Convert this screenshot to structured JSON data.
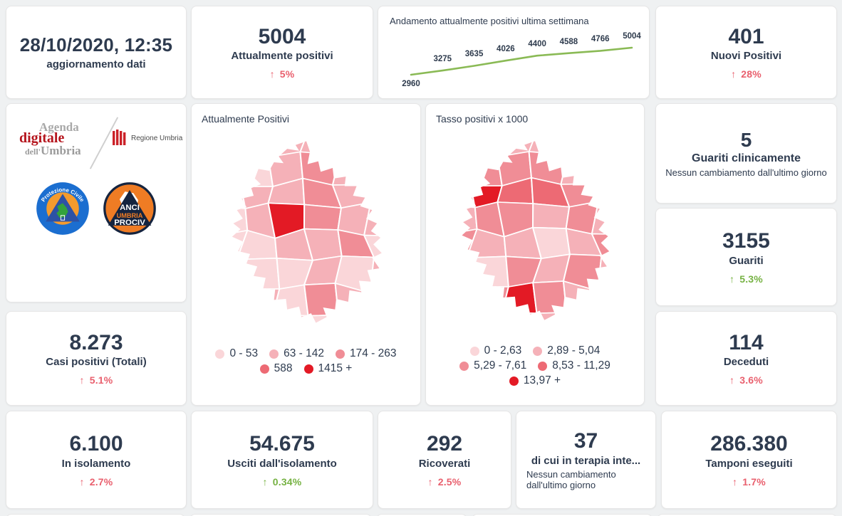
{
  "header": {
    "date": "28/10/2020, 12:35",
    "subtitle": "aggiornamento dati"
  },
  "icons": {
    "up_arrow": "↑"
  },
  "palette": [
    "#fad6d9",
    "#f5b1b8",
    "#f08d96",
    "#ed6a74",
    "#e31a25"
  ],
  "colors": {
    "text": "#2e3b4f",
    "red": "#e9606e",
    "green": "#76b243",
    "trend_line": "#8aba55"
  },
  "chart_data": {
    "type": "line",
    "title": "Andamento attualmente positivi ultima settimana",
    "values": [
      2960,
      3275,
      3635,
      4026,
      4400,
      4588,
      4766,
      5004
    ],
    "data_labels": [
      "2960",
      "3275",
      "3635",
      "4026",
      "4400",
      "4588",
      "4766",
      "5004"
    ],
    "line_color": "#8aba55",
    "ylim": [
      2800,
      5300
    ],
    "grid": false,
    "legend": "none"
  },
  "stats": {
    "attualmente": {
      "value": "5004",
      "label": "Attualmente positivi",
      "delta": "5%",
      "tone": "red"
    },
    "nuovi": {
      "value": "401",
      "label": "Nuovi Positivi",
      "delta": "28%",
      "tone": "red"
    },
    "guariti_clinicamente": {
      "value": "5",
      "label": "Guariti clinicamente",
      "note": "Nessun cambiamento dall'ultimo giorno"
    },
    "guariti": {
      "value": "3155",
      "label": "Guariti",
      "delta": "5.3%",
      "tone": "green"
    },
    "casi_totali": {
      "value": "8.273",
      "label": "Casi positivi (Totali)",
      "delta": "5.1%",
      "tone": "red"
    },
    "deceduti": {
      "value": "114",
      "label": "Deceduti",
      "delta": "3.6%",
      "tone": "red"
    },
    "isolamento": {
      "value": "6.100",
      "label": "In isolamento",
      "delta": "2.7%",
      "tone": "red"
    },
    "usciti": {
      "value": "54.675",
      "label": "Usciti dall'isolamento",
      "delta": "0.34%",
      "tone": "green"
    },
    "ricoverati": {
      "value": "292",
      "label": "Ricoverati",
      "delta": "2.5%",
      "tone": "red"
    },
    "terapia": {
      "value": "37",
      "label": "di cui in terapia inte...",
      "note_line1": "Nessun cambiamento",
      "note_line2": "dall'ultimo giorno"
    },
    "tamponi": {
      "value": "286.380",
      "label": "Tamponi eseguiti",
      "delta": "1.7%",
      "tone": "red"
    }
  },
  "maps": [
    {
      "title": "Attualmente Positivi",
      "legend_rows": [
        [
          {
            "label": "0 - 53",
            "bucket": 0
          },
          {
            "label": "63 - 142",
            "bucket": 1
          },
          {
            "label": "174 - 263",
            "bucket": 2
          }
        ],
        [
          {
            "label": "588",
            "bucket": 3
          },
          {
            "label": "1415 +",
            "bucket": 4
          }
        ]
      ],
      "region_buckets": [
        0,
        1,
        1,
        1,
        0,
        0,
        1,
        0,
        1,
        2,
        1,
        0,
        0,
        1,
        1,
        2,
        1,
        0,
        0,
        1,
        4,
        2,
        1,
        1,
        0,
        0,
        1,
        1,
        2,
        0,
        1,
        0,
        0,
        1,
        0,
        1,
        0,
        1,
        0,
        2,
        1,
        0,
        0,
        0,
        1,
        0,
        0,
        0
      ]
    },
    {
      "title": "Tasso positivi x 1000",
      "legend_rows": [
        [
          {
            "label": "0 - 2,63",
            "bucket": 0
          },
          {
            "label": "2,89 - 5,04",
            "bucket": 1
          }
        ],
        [
          {
            "label": "5,29 - 7,61",
            "bucket": 2
          },
          {
            "label": "8,53 - 11,29",
            "bucket": 3
          }
        ],
        [
          {
            "label": "13,97 +",
            "bucket": 4
          }
        ]
      ],
      "region_buckets": [
        0,
        1,
        1,
        1,
        1,
        0,
        1,
        2,
        2,
        2,
        1,
        1,
        1,
        4,
        3,
        3,
        2,
        1,
        1,
        2,
        2,
        1,
        2,
        1,
        2,
        1,
        1,
        0,
        1,
        2,
        1,
        0,
        2,
        1,
        2,
        1,
        1,
        2,
        4,
        2,
        1,
        0,
        1,
        0,
        1,
        1,
        0,
        1
      ]
    }
  ],
  "logos": {
    "agenda": {
      "line1": "Agenda",
      "line2": "digitale",
      "line3a": "dell'",
      "line3b": "Umbria"
    },
    "regione": {
      "label": "Regione Umbria"
    },
    "protezione": {
      "arc_top": "Protezione Civile",
      "arc_bottom": "Regione Umbria"
    },
    "anci": {
      "line1": "ANCI",
      "line2": "UMBRIA",
      "line3": "PROCIV"
    }
  }
}
